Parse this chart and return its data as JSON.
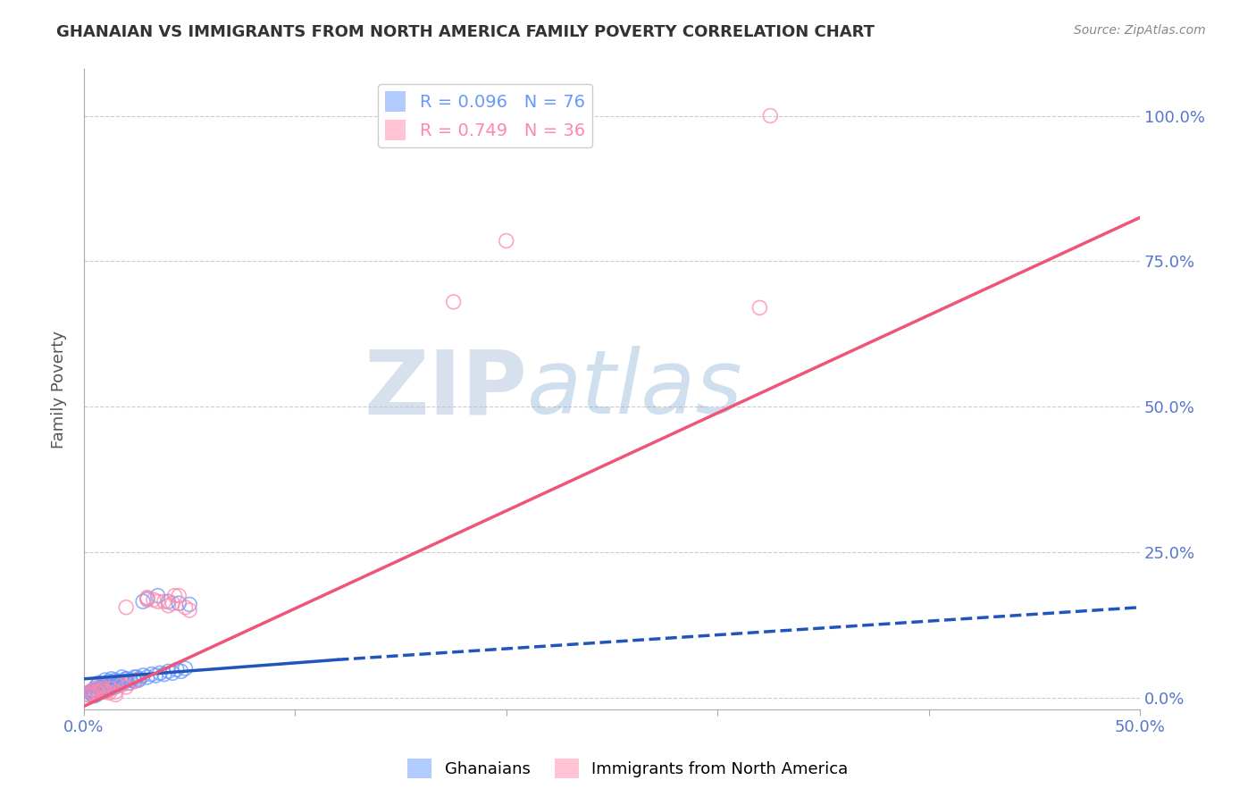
{
  "title": "GHANAIAN VS IMMIGRANTS FROM NORTH AMERICA FAMILY POVERTY CORRELATION CHART",
  "source": "Source: ZipAtlas.com",
  "ylabel": "Family Poverty",
  "xlim": [
    0.0,
    0.5
  ],
  "ylim": [
    -0.02,
    1.08
  ],
  "xticks": [
    0.0,
    0.1,
    0.2,
    0.3,
    0.4,
    0.5
  ],
  "ytick_labels_right": [
    "0.0%",
    "25.0%",
    "50.0%",
    "75.0%",
    "100.0%"
  ],
  "yticks_right": [
    0.0,
    0.25,
    0.5,
    0.75,
    1.0
  ],
  "blue_color": "#6699FF",
  "pink_color": "#FF88AA",
  "blue_R": 0.096,
  "blue_N": 76,
  "pink_R": 0.749,
  "pink_N": 36,
  "legend_label_blue": "Ghanaians",
  "legend_label_pink": "Immigrants from North America",
  "watermark_zip": "ZIP",
  "watermark_atlas": "atlas",
  "watermark_color_zip": "#b0c4de",
  "watermark_color_atlas": "#87afd4",
  "background_color": "#ffffff",
  "grid_color": "#cccccc",
  "title_color": "#333333",
  "axis_label_color": "#555555",
  "tick_label_color": "#5577cc",
  "blue_scatter_x": [
    0.003,
    0.004,
    0.004,
    0.004,
    0.005,
    0.005,
    0.005,
    0.006,
    0.006,
    0.006,
    0.007,
    0.007,
    0.007,
    0.008,
    0.008,
    0.009,
    0.009,
    0.01,
    0.01,
    0.01,
    0.011,
    0.011,
    0.012,
    0.012,
    0.013,
    0.013,
    0.014,
    0.015,
    0.015,
    0.016,
    0.017,
    0.018,
    0.019,
    0.02,
    0.021,
    0.022,
    0.024,
    0.025,
    0.026,
    0.028,
    0.03,
    0.032,
    0.034,
    0.036,
    0.038,
    0.04,
    0.042,
    0.044,
    0.046,
    0.048,
    0.002,
    0.003,
    0.004,
    0.005,
    0.006,
    0.007,
    0.008,
    0.009,
    0.01,
    0.011,
    0.012,
    0.013,
    0.014,
    0.015,
    0.016,
    0.018,
    0.02,
    0.022,
    0.024,
    0.026,
    0.028,
    0.03,
    0.035,
    0.04,
    0.045,
    0.05
  ],
  "blue_scatter_y": [
    0.01,
    0.005,
    0.008,
    0.012,
    0.003,
    0.007,
    0.015,
    0.005,
    0.01,
    0.02,
    0.008,
    0.015,
    0.025,
    0.012,
    0.02,
    0.01,
    0.018,
    0.015,
    0.022,
    0.03,
    0.018,
    0.025,
    0.02,
    0.028,
    0.022,
    0.032,
    0.025,
    0.018,
    0.03,
    0.028,
    0.022,
    0.035,
    0.028,
    0.032,
    0.025,
    0.03,
    0.028,
    0.035,
    0.03,
    0.038,
    0.035,
    0.04,
    0.038,
    0.042,
    0.04,
    0.045,
    0.042,
    0.048,
    0.045,
    0.05,
    0.005,
    0.008,
    0.01,
    0.006,
    0.012,
    0.008,
    0.015,
    0.01,
    0.018,
    0.012,
    0.015,
    0.018,
    0.02,
    0.022,
    0.025,
    0.028,
    0.032,
    0.03,
    0.035,
    0.032,
    0.165,
    0.17,
    0.175,
    0.165,
    0.162,
    0.16
  ],
  "pink_scatter_x": [
    0.002,
    0.003,
    0.004,
    0.005,
    0.005,
    0.006,
    0.007,
    0.008,
    0.008,
    0.009,
    0.01,
    0.012,
    0.013,
    0.015,
    0.015,
    0.018,
    0.02,
    0.022,
    0.025,
    0.03,
    0.03,
    0.033,
    0.035,
    0.038,
    0.04,
    0.042,
    0.043,
    0.045,
    0.048,
    0.05,
    0.2,
    0.32,
    0.325,
    0.175,
    0.02,
    0.015
  ],
  "pink_scatter_y": [
    0.005,
    0.01,
    0.008,
    0.005,
    0.015,
    0.01,
    0.008,
    0.012,
    0.02,
    0.015,
    0.01,
    0.008,
    0.015,
    0.005,
    0.01,
    0.022,
    0.018,
    0.025,
    0.03,
    0.168,
    0.172,
    0.168,
    0.165,
    0.165,
    0.158,
    0.162,
    0.175,
    0.175,
    0.155,
    0.15,
    0.785,
    0.67,
    1.0,
    0.68,
    0.155,
    0.025
  ],
  "blue_line_solid": [
    [
      0.0,
      0.032
    ],
    [
      0.12,
      0.065
    ]
  ],
  "blue_line_dashed": [
    [
      0.12,
      0.065
    ],
    [
      0.5,
      0.155
    ]
  ],
  "pink_line": [
    [
      0.0,
      -0.015
    ],
    [
      0.5,
      0.825
    ]
  ]
}
